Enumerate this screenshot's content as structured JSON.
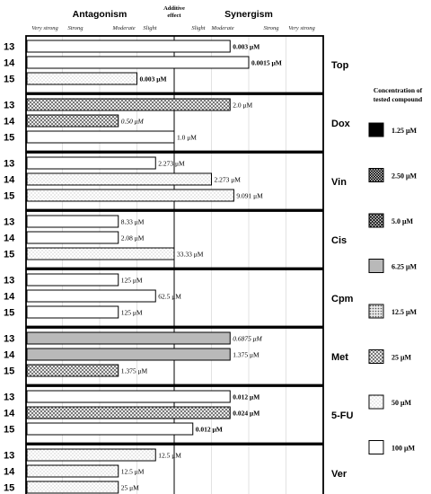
{
  "chart_data": {
    "type": "bar",
    "header": {
      "left": "Antagonism",
      "center_line1": "Additive",
      "center_line2": "effect",
      "right": "Synergism"
    },
    "grades": [
      "Very strong",
      "Strong",
      "Moderate",
      "Slight",
      "Slight",
      "Moderate",
      "Strong",
      "Very strong"
    ],
    "row_labels": [
      "13",
      "14",
      "15"
    ],
    "drugs": [
      {
        "name": "Top",
        "bars": [
          {
            "value": 1.5,
            "pattern": "white",
            "label": "0.003 μM",
            "label_bold": true,
            "label_italic": false,
            "label_color": "#000000"
          },
          {
            "value": 2.0,
            "pattern": "white",
            "label": "0.0015 μM",
            "label_bold": true,
            "label_italic": false,
            "label_color": "#000000"
          },
          {
            "value": -1.0,
            "pattern": "dots_light",
            "label": "0.003 μM",
            "label_bold": true,
            "label_italic": false,
            "label_color": "#000000"
          }
        ]
      },
      {
        "name": "Dox",
        "bars": [
          {
            "value": 1.5,
            "pattern": "cross_fine",
            "label": "2.0 μM",
            "label_bold": false,
            "label_italic": false,
            "label_color": "#000000"
          },
          {
            "value": -1.5,
            "pattern": "cross_fine",
            "label": "0.50 μM",
            "label_bold": false,
            "label_italic": true,
            "label_color": "#000000"
          },
          {
            "value": 0.0,
            "pattern": "white",
            "label": "1.0 μM",
            "label_bold": false,
            "label_italic": false,
            "label_color": "#000000"
          }
        ]
      },
      {
        "name": "Vin",
        "bars": [
          {
            "value": -0.5,
            "pattern": "white",
            "label": "2.273 μM",
            "label_bold": false,
            "label_italic": false,
            "label_color": "#000000"
          },
          {
            "value": 1.0,
            "pattern": "dots_light",
            "label": "2.273 μM",
            "label_bold": false,
            "label_italic": false,
            "label_color": "#000000"
          },
          {
            "value": 1.6,
            "pattern": "dots_light",
            "label": "9.091 μM",
            "label_bold": false,
            "label_italic": false,
            "label_color": "#000000"
          }
        ]
      },
      {
        "name": "Cis",
        "bars": [
          {
            "value": -1.5,
            "pattern": "white",
            "label": "8.33 μM",
            "label_bold": false,
            "label_italic": false,
            "label_color": "#000000"
          },
          {
            "value": -1.5,
            "pattern": "white",
            "label": "2.08 μM",
            "label_bold": false,
            "label_italic": false,
            "label_color": "#000000"
          },
          {
            "value": 0.0,
            "pattern": "dots_light",
            "label": "33.33 μM",
            "label_bold": false,
            "label_italic": false,
            "label_color": "#999999"
          }
        ]
      },
      {
        "name": "Cpm",
        "bars": [
          {
            "value": -1.5,
            "pattern": "white",
            "label": "125 μM",
            "label_bold": false,
            "label_italic": false,
            "label_color": "#999999"
          },
          {
            "value": -0.5,
            "pattern": "white",
            "label": "62.5 μM",
            "label_bold": false,
            "label_italic": false,
            "label_color": "#999999"
          },
          {
            "value": -1.5,
            "pattern": "white",
            "label": "125 μM",
            "label_bold": false,
            "label_italic": false,
            "label_color": "#999999"
          }
        ]
      },
      {
        "name": "Met",
        "bars": [
          {
            "value": 1.5,
            "pattern": "gray",
            "label": "0.6875 μM",
            "label_bold": false,
            "label_italic": true,
            "label_color": "#000000"
          },
          {
            "value": 1.5,
            "pattern": "gray",
            "label": "1.375 μM",
            "label_bold": false,
            "label_italic": false,
            "label_color": "#000000"
          },
          {
            "value": -1.5,
            "pattern": "cross_fine",
            "label": "1.375 μM",
            "label_bold": false,
            "label_italic": false,
            "label_color": "#000000"
          }
        ]
      },
      {
        "name": "5-FU",
        "bars": [
          {
            "value": 1.5,
            "pattern": "white",
            "label": "0.012 μM",
            "label_bold": true,
            "label_italic": false,
            "label_color": "#000000"
          },
          {
            "value": 1.5,
            "pattern": "cross_fine",
            "label": "0.024 μM",
            "label_bold": true,
            "label_italic": false,
            "label_color": "#000000"
          },
          {
            "value": 0.5,
            "pattern": "white",
            "label": "0.012 μM",
            "label_bold": true,
            "label_italic": false,
            "label_color": "#000000"
          }
        ]
      },
      {
        "name": "Ver",
        "bars": [
          {
            "value": -0.5,
            "pattern": "dots_light",
            "label": "12.5 μM",
            "label_bold": false,
            "label_italic": false,
            "label_color": "#999999"
          },
          {
            "value": -1.5,
            "pattern": "dots_light",
            "label": "12.5 μM",
            "label_bold": false,
            "label_italic": false,
            "label_color": "#999999"
          },
          {
            "value": -1.5,
            "pattern": "dots_light",
            "label": "25 μM",
            "label_bold": false,
            "label_italic": false,
            "label_color": "#999999"
          }
        ]
      }
    ],
    "legend": {
      "title_line1": "Concentration of",
      "title_line2": "tested compound",
      "items": [
        {
          "label": "1.25 μM",
          "pattern": "black"
        },
        {
          "label": "2.50 μM",
          "pattern": "cross_dense"
        },
        {
          "label": "5.0 μM",
          "pattern": "cross_med"
        },
        {
          "label": "6.25 μM",
          "pattern": "gray"
        },
        {
          "label": "12.5 μM",
          "pattern": "dots_dense"
        },
        {
          "label": "25 μM",
          "pattern": "cross_fine"
        },
        {
          "label": "50 μM",
          "pattern": "dots_light"
        },
        {
          "label": "100 μM",
          "pattern": "white"
        }
      ]
    },
    "scale": {
      "min": -4,
      "max": 4,
      "zero_label_position": "center"
    }
  }
}
